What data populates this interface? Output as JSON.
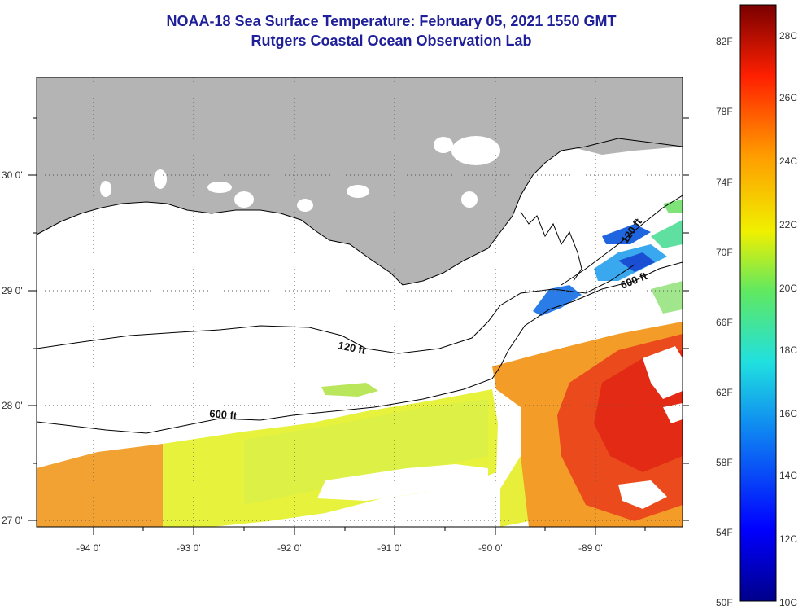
{
  "title_line1": "NOAA-18 Sea Surface Temperature:  February 05, 2021 1550 GMT",
  "title_line2": "Rutgers Coastal Ocean Observation Lab",
  "axes": {
    "longitude_ticks": [
      "-94 0'",
      "-93 0'",
      "-92 0'",
      "-91 0'",
      "-90 0'",
      "-89 0'"
    ],
    "latitude_ticks": [
      "30 0'",
      "29 0'",
      "28 0'",
      "27 0'"
    ]
  },
  "contours": [
    "120 ft",
    "600 ft",
    "120 ft",
    "600 ft"
  ],
  "colorbar": {
    "fahrenheit": [
      "82F",
      "78F",
      "74F",
      "70F",
      "66F",
      "62F",
      "58F",
      "54F",
      "50F"
    ],
    "celsius": [
      "28C",
      "26C",
      "24C",
      "22C",
      "20C",
      "18C",
      "16C",
      "14C",
      "12C",
      "10C"
    ]
  },
  "colors": {
    "land": "#b4b4b4",
    "title": "#1f1f9a",
    "warm_core": "#e8301a",
    "orange": "#f39a26",
    "yellow": "#e8f23a",
    "cold": "#1e58d8"
  }
}
